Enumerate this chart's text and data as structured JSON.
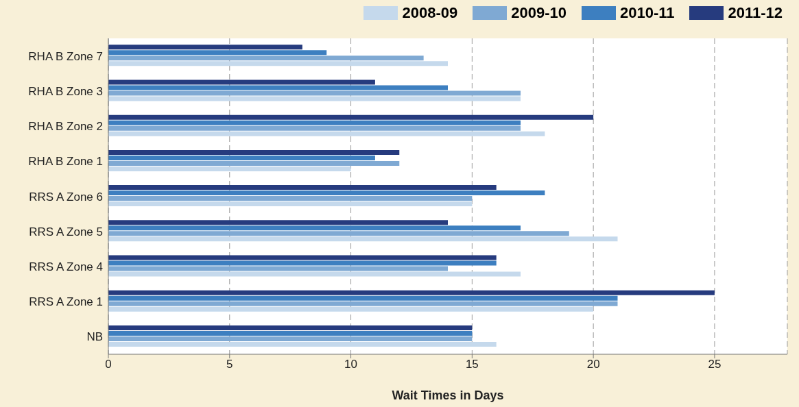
{
  "chart_data": {
    "type": "bar",
    "orientation": "horizontal",
    "xlabel": "Wait Times in Days",
    "categories": [
      "RHA B Zone 7",
      "RHA B Zone 3",
      "RHA B Zone 2",
      "RHA B Zone 1",
      "RRS A  Zone 6",
      "RRS A  Zone 5",
      "RRS A  Zone 4",
      "RRS A  Zone 1",
      "NB"
    ],
    "series": [
      {
        "name": "2008-09",
        "color": "#c5d9ec",
        "values": [
          14,
          17,
          18,
          10,
          15,
          21,
          17,
          20,
          16
        ]
      },
      {
        "name": "2009-10",
        "color": "#7fa9d3",
        "values": [
          13,
          17,
          17,
          12,
          15,
          19,
          14,
          21,
          15
        ]
      },
      {
        "name": "2010-11",
        "color": "#3d7fc0",
        "values": [
          9,
          14,
          17,
          11,
          18,
          17,
          16,
          21,
          15
        ]
      },
      {
        "name": "2011-12",
        "color": "#263b7e",
        "values": [
          8,
          11,
          20,
          12,
          16,
          14,
          16,
          25,
          15
        ]
      }
    ],
    "xlim": [
      0,
      28
    ],
    "xticks": [
      0,
      5,
      10,
      15,
      20,
      25
    ],
    "grid": "x",
    "legend": "top right"
  }
}
